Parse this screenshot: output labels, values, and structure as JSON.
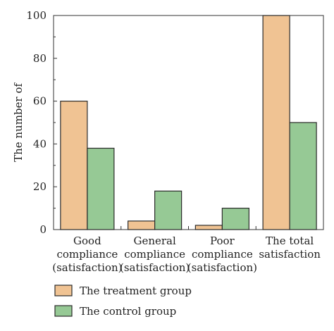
{
  "chart_data": {
    "type": "bar",
    "categories": [
      [
        "Good",
        "compliance",
        "(satisfaction)"
      ],
      [
        "General",
        "compliance",
        "(satisfaction)"
      ],
      [
        "Poor",
        "compliance",
        "(satisfaction)"
      ],
      [
        "The total",
        "satisfaction"
      ]
    ],
    "series": [
      {
        "name": "The treatment group",
        "values": [
          60,
          4,
          2,
          100
        ],
        "color": "#f0c393"
      },
      {
        "name": "The control group",
        "values": [
          38,
          18,
          10,
          50
        ],
        "color": "#96c995"
      }
    ],
    "ylabel": "The number of",
    "ylim": [
      0,
      100
    ],
    "yticks": [
      0,
      20,
      40,
      60,
      80,
      100
    ],
    "grid": false,
    "legend": "bottom-left",
    "colors": {
      "stroke": "#2b2b2b",
      "axis": "#333333"
    }
  }
}
